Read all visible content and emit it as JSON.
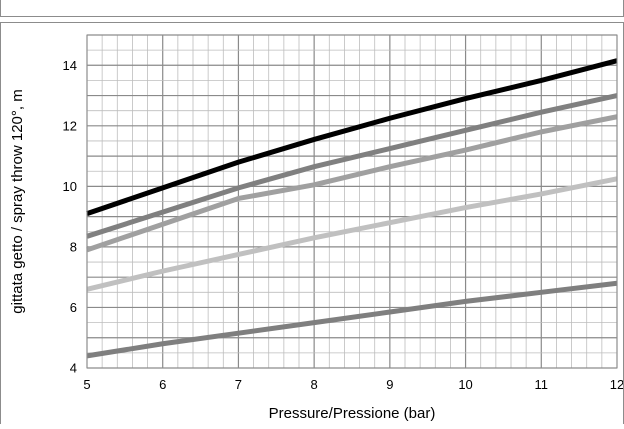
{
  "chart_data": {
    "type": "line",
    "title": "",
    "xlabel": "Pressure/Pressione (bar)",
    "ylabel": "gittata getto  / spray throw 120°, m",
    "xlim": [
      5,
      12
    ],
    "ylim": [
      4,
      15
    ],
    "x_ticks": [
      5,
      6,
      7,
      8,
      9,
      10,
      11,
      12
    ],
    "y_ticks": [
      4,
      6,
      8,
      10,
      12,
      14
    ],
    "grid": true,
    "x_minor_step": 0.2,
    "y_minor_step": 0.5,
    "legend": "none",
    "x": [
      5,
      6,
      7,
      8,
      9,
      10,
      11,
      12
    ],
    "series": [
      {
        "color": "#000000",
        "values": [
          9.1,
          9.95,
          10.8,
          11.55,
          12.25,
          12.9,
          13.5,
          14.15
        ]
      },
      {
        "color": "#808080",
        "values": [
          8.35,
          9.15,
          9.95,
          10.65,
          11.25,
          11.85,
          12.45,
          13.0
        ]
      },
      {
        "color": "#a0a0a0",
        "values": [
          7.9,
          8.75,
          9.6,
          10.05,
          10.65,
          11.2,
          11.8,
          12.3
        ]
      },
      {
        "color": "#c0c0c0",
        "values": [
          6.6,
          7.2,
          7.75,
          8.3,
          8.8,
          9.3,
          9.75,
          10.25
        ]
      },
      {
        "color": "#7f7f7f",
        "values": [
          4.4,
          4.8,
          5.15,
          5.5,
          5.85,
          6.2,
          6.5,
          6.8
        ]
      }
    ]
  }
}
